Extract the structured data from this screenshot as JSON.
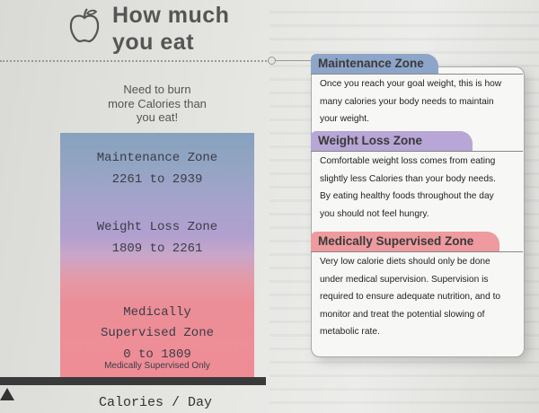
{
  "header": {
    "title_line1": "How much",
    "title_line2": "you eat",
    "icon": "apple-icon"
  },
  "subtext": [
    "Need to burn",
    "more Calories than",
    "you eat!"
  ],
  "zones_bar": {
    "maintenance": {
      "name": "Maintenance Zone",
      "range": "2261 to 2939"
    },
    "weight_loss": {
      "name": "Weight Loss Zone",
      "range": "1809 to 2261"
    },
    "medical": {
      "line1": "Medically",
      "line2": "Supervised Zone",
      "range": "0 to 1809",
      "note": "Medically Supervised Only"
    }
  },
  "axis_label": "Calories / Day",
  "cards": [
    {
      "title": "Maintenance Zone",
      "color": "#8da5c8",
      "lines": [
        "Once you reach your goal weight, this is how",
        "many calories your body needs to maintain",
        "your weight."
      ]
    },
    {
      "title": "Weight Loss Zone",
      "color": "#b7a6d6",
      "lines": [
        "Comfortable weight loss comes from eating",
        "slightly less Calories than your body needs.",
        "By eating healthy foods throughout the day",
        "you should not feel hungry."
      ]
    },
    {
      "title": "Medically Supervised Zone",
      "color": "#ee9a9f",
      "lines": [
        "Very low calorie diets should only be done",
        "under medical supervision.  Supervision is",
        "required to ensure adequate nutrition, and to",
        "monitor and treat the potential slowing of",
        "metabolic rate."
      ]
    }
  ]
}
